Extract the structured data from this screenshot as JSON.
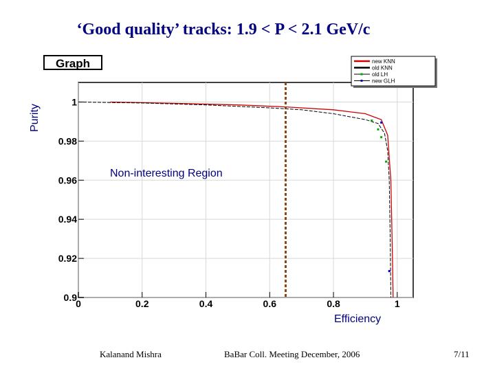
{
  "slide": {
    "title": "‘Good quality’ tracks:  1.9 < P < 2.1 GeV/c",
    "annotation": "Non-interesting Region",
    "footer_left": "Kalanand Mishra",
    "footer_center": "BaBar Coll. Meeting December, 2006",
    "footer_right": "7/11"
  },
  "chart_data": {
    "type": "line",
    "title": "Graph",
    "xlabel": "Efficiency",
    "ylabel": "Purity",
    "xlim": [
      0,
      1.05
    ],
    "ylim": [
      0.9,
      1.01
    ],
    "x_ticks": [
      "0",
      "0.2",
      "0.4",
      "0.6",
      "0.8",
      "1"
    ],
    "y_ticks": [
      "0.9",
      "0.92",
      "0.94",
      "0.96",
      "0.98",
      "1"
    ],
    "grid": true,
    "legend_position": "top-right",
    "threshold_x": 0.65,
    "colors": {
      "new_knn": "#cc0000",
      "old_knn": "#000000",
      "old_lh": "#00aa00",
      "new_glh": "#0000cc",
      "threshold": "#8b4513"
    },
    "series": [
      {
        "name": "new KNN",
        "style": "line",
        "points": [
          [
            0.1,
            1.0
          ],
          [
            0.3,
            0.9993
          ],
          [
            0.5,
            0.9985
          ],
          [
            0.65,
            0.9975
          ],
          [
            0.8,
            0.996
          ],
          [
            0.9,
            0.994
          ],
          [
            0.95,
            0.991
          ],
          [
            0.97,
            0.983
          ],
          [
            0.98,
            0.96
          ],
          [
            0.985,
            0.92
          ],
          [
            0.987,
            0.9
          ]
        ]
      },
      {
        "name": "old KNN",
        "style": "line",
        "points": [
          [
            0,
            1.0
          ],
          [
            0.2,
            0.9995
          ],
          [
            0.4,
            0.9985
          ],
          [
            0.6,
            0.997
          ],
          [
            0.7,
            0.996
          ],
          [
            0.8,
            0.994
          ],
          [
            0.9,
            0.991
          ],
          [
            0.94,
            0.989
          ],
          [
            0.96,
            0.984
          ],
          [
            0.97,
            0.975
          ],
          [
            0.975,
            0.96
          ],
          [
            0.978,
            0.93
          ],
          [
            0.98,
            0.9
          ]
        ]
      },
      {
        "name": "old LH",
        "style": "points",
        "points": [
          [
            0.92,
            0.9905
          ],
          [
            0.94,
            0.986
          ],
          [
            0.95,
            0.982
          ],
          [
            0.965,
            0.9695
          ]
        ]
      },
      {
        "name": "new GLH",
        "style": "points",
        "points": [
          [
            0.95,
            0.9895
          ],
          [
            0.975,
            0.9135
          ]
        ]
      }
    ]
  }
}
